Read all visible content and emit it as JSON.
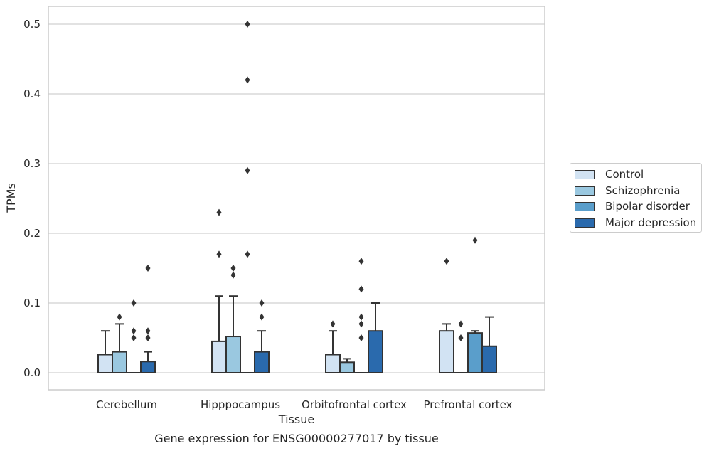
{
  "chart_data": {
    "type": "box",
    "title": "Gene expression for ENSG00000277017 by tissue",
    "xlabel": "Tissue",
    "ylabel": "TPMs",
    "ylim": [
      -0.025,
      0.525
    ],
    "yticks": [
      "0.0",
      "0.1",
      "0.2",
      "0.3",
      "0.4",
      "0.5"
    ],
    "grid": true,
    "legend_position": "right",
    "categories": [
      "Cerebellum",
      "Hipppocampus",
      "Orbitofrontal cortex",
      "Prefrontal cortex"
    ],
    "series": [
      {
        "name": "Control",
        "color": "#d2e3f3",
        "boxes": [
          {
            "q1": 0,
            "median": 0,
            "q3": 0.026,
            "whisker_low": 0,
            "whisker_high": 0.06,
            "outliers": []
          },
          {
            "q1": 0,
            "median": 0,
            "q3": 0.045,
            "whisker_low": 0,
            "whisker_high": 0.11,
            "outliers": [
              0.17,
              0.23
            ]
          },
          {
            "q1": 0,
            "median": 0,
            "q3": 0.026,
            "whisker_low": 0,
            "whisker_high": 0.06,
            "outliers": [
              0.07
            ]
          },
          {
            "q1": 0,
            "median": 0,
            "q3": 0.06,
            "whisker_low": 0,
            "whisker_high": 0.07,
            "outliers": [
              0.16
            ]
          }
        ]
      },
      {
        "name": "Schizophrenia",
        "color": "#9ac8e0",
        "boxes": [
          {
            "q1": 0,
            "median": 0,
            "q3": 0.03,
            "whisker_low": 0,
            "whisker_high": 0.07,
            "outliers": [
              0.08
            ]
          },
          {
            "q1": 0,
            "median": 0,
            "q3": 0.052,
            "whisker_low": 0,
            "whisker_high": 0.11,
            "outliers": [
              0.14,
              0.15
            ]
          },
          {
            "q1": 0,
            "median": 0,
            "q3": 0.015,
            "whisker_low": 0,
            "whisker_high": 0.02,
            "outliers": []
          },
          {
            "q1": 0,
            "median": 0,
            "q3": 0,
            "whisker_low": 0,
            "whisker_high": 0,
            "outliers": [
              0.05,
              0.07
            ]
          }
        ]
      },
      {
        "name": "Bipolar disorder",
        "color": "#5a9ecb",
        "boxes": [
          {
            "q1": 0,
            "median": 0,
            "q3": 0,
            "whisker_low": 0,
            "whisker_high": 0,
            "outliers": [
              0.05,
              0.06,
              0.1
            ]
          },
          {
            "q1": 0,
            "median": 0,
            "q3": 0,
            "whisker_low": 0,
            "whisker_high": 0,
            "outliers": [
              0.17,
              0.29,
              0.42,
              0.5
            ]
          },
          {
            "q1": 0,
            "median": 0,
            "q3": 0,
            "whisker_low": 0,
            "whisker_high": 0,
            "outliers": [
              0.05,
              0.07,
              0.08,
              0.12,
              0.16
            ]
          },
          {
            "q1": 0,
            "median": 0,
            "q3": 0.057,
            "whisker_low": 0,
            "whisker_high": 0.06,
            "outliers": [
              0.19
            ]
          }
        ]
      },
      {
        "name": "Major depression",
        "color": "#2a6aad",
        "boxes": [
          {
            "q1": 0,
            "median": 0,
            "q3": 0.016,
            "whisker_low": 0,
            "whisker_high": 0.03,
            "outliers": [
              0.05,
              0.06,
              0.15
            ]
          },
          {
            "q1": 0,
            "median": 0,
            "q3": 0.03,
            "whisker_low": 0,
            "whisker_high": 0.06,
            "outliers": [
              0.08,
              0.1
            ]
          },
          {
            "q1": 0,
            "median": 0,
            "q3": 0.06,
            "whisker_low": 0,
            "whisker_high": 0.1,
            "outliers": []
          },
          {
            "q1": 0,
            "median": 0,
            "q3": 0.038,
            "whisker_low": 0,
            "whisker_high": 0.08,
            "outliers": []
          }
        ]
      }
    ]
  }
}
